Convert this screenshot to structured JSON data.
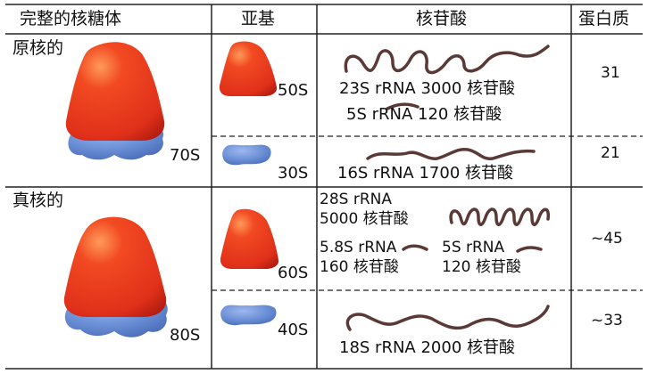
{
  "header": {
    "ribosome": "完整的核糖体",
    "subunit": "亚基",
    "rna": "核苷酸",
    "protein": "蛋白质"
  },
  "prokaryote": {
    "category": "原核的",
    "whole": "70S",
    "large": {
      "label": "50S",
      "rna_1": "23S rRNA 3000 核苷酸",
      "rna_2": "5S rRNA 120 核苷酸",
      "protein": "31"
    },
    "small": {
      "label": "30S",
      "rna": "16S rRNA 1700 核苷酸",
      "protein": "21"
    }
  },
  "eukaryote": {
    "category": "真核的",
    "whole": "80S",
    "large": {
      "label": "60S",
      "rna_28s_line1": "28S rRNA",
      "rna_28s_line2": "5000 核苷酸",
      "rna_58s_line1": "5.8S rRNA",
      "rna_58s_line2": "160 核苷酸",
      "rna_5s_line1": "5S rRNA",
      "rna_5s_line2": "120 核苷酸",
      "protein": "~45"
    },
    "small": {
      "label": "40S",
      "rna": "18S rRNA 2000 核苷酸",
      "protein": "~33"
    }
  },
  "colors": {
    "large_subunit": "#e8361c",
    "small_subunit": "#6b8fd6",
    "rna_strand": "#5a3a36",
    "grid": "#222222"
  }
}
